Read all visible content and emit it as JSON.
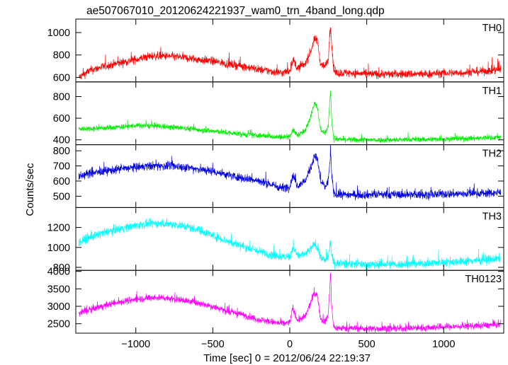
{
  "title": "ae507067010_20120624221937_wam0_trn_4band_long.qdp",
  "xlabel": "Time [sec] 0 = 2012/06/24 22:19:37",
  "ylabel": "Counts/sec",
  "chart_data": {
    "type": "line",
    "xlim": [
      -1390,
      1390
    ],
    "x_ticks": [
      -1000,
      -500,
      0,
      500,
      1000
    ],
    "x_tick_labels": [
      "−1000",
      "−500",
      "0",
      "500",
      "1000"
    ],
    "panels": [
      {
        "name": "TH0",
        "color": "#ff0000",
        "ylim": [
          560,
          1120
        ],
        "y_ticks": [
          600,
          800,
          1000
        ],
        "y_tick_labels": [
          "600",
          "800",
          "1000"
        ],
        "x": [
          -1370,
          -1300,
          -1200,
          -1100,
          -1000,
          -900,
          -800,
          -700,
          -600,
          -500,
          -400,
          -300,
          -200,
          -100,
          -50,
          0,
          20,
          50,
          100,
          140,
          160,
          180,
          200,
          230,
          250,
          265,
          272,
          285,
          300,
          400,
          500,
          600,
          700,
          800,
          900,
          1000,
          1100,
          1200,
          1300,
          1370
        ],
        "values": [
          600,
          660,
          700,
          730,
          760,
          790,
          790,
          780,
          760,
          745,
          720,
          700,
          670,
          650,
          640,
          660,
          760,
          680,
          720,
          850,
          940,
          930,
          720,
          700,
          760,
          1080,
          900,
          660,
          640,
          640,
          630,
          630,
          630,
          630,
          630,
          640,
          640,
          650,
          660,
          670
        ],
        "noise": 26
      },
      {
        "name": "TH1",
        "color": "#00ee00",
        "ylim": [
          355,
          935
        ],
        "y_ticks": [
          400,
          600,
          800
        ],
        "y_tick_labels": [
          "400",
          "600",
          "800"
        ],
        "x": [
          -1370,
          -1300,
          -1200,
          -1100,
          -1000,
          -900,
          -800,
          -700,
          -600,
          -500,
          -400,
          -300,
          -200,
          -100,
          -50,
          0,
          20,
          50,
          100,
          140,
          160,
          180,
          200,
          230,
          250,
          265,
          272,
          285,
          300,
          400,
          500,
          600,
          700,
          800,
          900,
          1000,
          1100,
          1200,
          1300,
          1370
        ],
        "values": [
          500,
          505,
          510,
          520,
          530,
          530,
          520,
          510,
          495,
          480,
          465,
          450,
          440,
          430,
          425,
          435,
          490,
          445,
          480,
          640,
          740,
          700,
          500,
          460,
          530,
          860,
          600,
          410,
          405,
          400,
          400,
          400,
          400,
          405,
          405,
          410,
          410,
          415,
          420,
          425
        ],
        "noise": 18
      },
      {
        "name": "TH2",
        "color": "#0000dd",
        "ylim": [
          425,
          840
        ],
        "y_ticks": [
          500,
          600,
          700,
          800
        ],
        "y_tick_labels": [
          "500",
          "600",
          "700",
          "800"
        ],
        "x": [
          -1370,
          -1300,
          -1200,
          -1100,
          -1000,
          -900,
          -800,
          -700,
          -600,
          -500,
          -400,
          -300,
          -200,
          -100,
          -50,
          0,
          20,
          50,
          100,
          140,
          160,
          180,
          200,
          230,
          250,
          265,
          272,
          285,
          300,
          400,
          500,
          600,
          700,
          800,
          900,
          1000,
          1100,
          1200,
          1300,
          1370
        ],
        "values": [
          630,
          650,
          665,
          680,
          690,
          700,
          700,
          695,
          680,
          665,
          640,
          620,
          600,
          570,
          555,
          565,
          640,
          570,
          600,
          700,
          770,
          740,
          600,
          560,
          600,
          790,
          650,
          520,
          510,
          510,
          510,
          510,
          510,
          510,
          510,
          515,
          515,
          520,
          520,
          525
        ],
        "noise": 20
      },
      {
        "name": "TH3",
        "color": "#00ffff",
        "ylim": [
          770,
          1400
        ],
        "y_ticks": [
          800,
          1000,
          1200
        ],
        "y_tick_labels": [
          "800",
          "1000",
          "1200"
        ],
        "x": [
          -1370,
          -1300,
          -1200,
          -1100,
          -1000,
          -900,
          -800,
          -700,
          -600,
          -500,
          -400,
          -300,
          -200,
          -100,
          -50,
          0,
          20,
          50,
          100,
          140,
          160,
          180,
          200,
          230,
          250,
          265,
          272,
          285,
          300,
          400,
          500,
          600,
          700,
          800,
          900,
          1000,
          1100,
          1200,
          1300,
          1370
        ],
        "values": [
          1050,
          1100,
          1150,
          1190,
          1220,
          1240,
          1240,
          1220,
          1180,
          1120,
          1060,
          1010,
          960,
          920,
          905,
          910,
          1000,
          920,
          930,
          990,
          1040,
          1000,
          900,
          870,
          900,
          1060,
          930,
          850,
          840,
          835,
          830,
          830,
          830,
          835,
          840,
          850,
          860,
          870,
          880,
          890
        ],
        "noise": 30
      },
      {
        "name": "TH0123",
        "color": "#ff00ff",
        "ylim": [
          2230,
          4030
        ],
        "y_ticks": [
          2500,
          3000,
          3500,
          4000
        ],
        "y_tick_labels": [
          "2500",
          "3000",
          "3500",
          "4000"
        ],
        "x": [
          -1370,
          -1300,
          -1200,
          -1100,
          -1000,
          -900,
          -800,
          -700,
          -600,
          -500,
          -400,
          -300,
          -200,
          -100,
          -50,
          0,
          20,
          50,
          100,
          140,
          160,
          180,
          200,
          230,
          250,
          265,
          272,
          285,
          300,
          400,
          500,
          600,
          700,
          800,
          900,
          1000,
          1100,
          1200,
          1300,
          1370
        ],
        "values": [
          2800,
          2900,
          3020,
          3130,
          3200,
          3250,
          3240,
          3180,
          3100,
          3000,
          2850,
          2750,
          2620,
          2540,
          2500,
          2540,
          2950,
          2600,
          2700,
          3150,
          3380,
          3300,
          2650,
          2550,
          2750,
          3950,
          3000,
          2420,
          2380,
          2370,
          2360,
          2360,
          2360,
          2380,
          2390,
          2410,
          2420,
          2440,
          2460,
          2480
        ],
        "noise": 70
      }
    ]
  }
}
